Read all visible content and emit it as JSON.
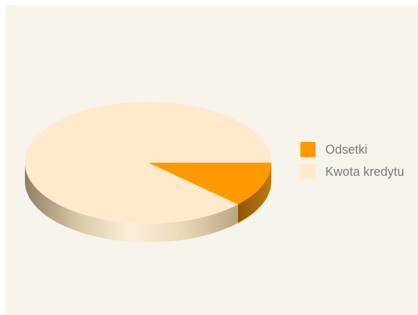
{
  "colors": {
    "background": "#f7f4ec",
    "odsetki": "#ff9900",
    "odsetki_side": "#b86e00",
    "kwota": "#ffeacc",
    "kwota_side_light": "#f0e2c8",
    "kwota_side_dark": "#a59478",
    "legend_text": "#7a7a7a"
  },
  "chart_data": {
    "type": "pie",
    "title": "",
    "style": "3d",
    "legend_position": "right",
    "slices": [
      {
        "label": "Odsetki",
        "value": 12,
        "color": "#ff9900"
      },
      {
        "label": "Kwota kredytu",
        "value": 88,
        "color": "#ffeacc"
      }
    ],
    "legend": [
      {
        "label": "Odsetki",
        "color": "#ff9900"
      },
      {
        "label": "Kwota kredytu",
        "color": "#ffeacc"
      }
    ]
  }
}
